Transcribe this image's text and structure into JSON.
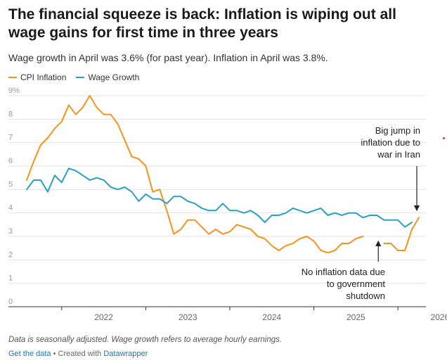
{
  "header": {
    "title": "The financial squeeze is back: Inflation is wiping out all wage gains for first time in three years",
    "subtitle": "Wage growth in April was 3.6% (for past year). Inflation in April was 3.8%."
  },
  "footer": {
    "note": "Data is seasonally adjusted. Wage growth refers to average hourly earnings.",
    "get_data": "Get the data",
    "separator": " • Created with ",
    "created_with": "Datawrapper"
  },
  "colors": {
    "cpi": "#f5931e",
    "wage": "#2aa1c3",
    "grid": "#e2e2e2",
    "text": "#555555"
  },
  "chart_data": {
    "type": "line",
    "ylim": [
      0,
      9
    ],
    "xlim": [
      "2021-08",
      "2026-05"
    ],
    "y_ticks": [
      "0",
      "1",
      "2",
      "3",
      "4",
      "5",
      "6",
      "7",
      "8",
      "9%"
    ],
    "x_ticks": [
      "2022",
      "2023",
      "2024",
      "2025",
      "2026"
    ],
    "legend_position": "top-left",
    "grid": "horizontal",
    "annotations": [
      {
        "text": [
          "Big jump in",
          "inflation due to",
          "war in Iran"
        ],
        "x": "2026-04",
        "y": 3.8
      },
      {
        "text": [
          "No inflation data due",
          "to government",
          "shutdown"
        ],
        "x": "2025-10",
        "y": 2.9
      }
    ],
    "series": [
      {
        "name": "CPI Inflation",
        "color": "#f5931e",
        "start": "2021-08",
        "values": [
          5.4,
          6.2,
          6.9,
          7.2,
          7.6,
          7.9,
          8.6,
          8.2,
          8.5,
          9.0,
          8.5,
          8.2,
          8.2,
          7.8,
          7.1,
          6.4,
          6.3,
          6.0,
          4.9,
          5.0,
          4.1,
          3.1,
          3.3,
          3.7,
          3.7,
          3.4,
          3.1,
          3.3,
          3.1,
          3.2,
          3.5,
          3.4,
          3.3,
          3.0,
          2.9,
          2.6,
          2.4,
          2.6,
          2.7,
          2.9,
          3.0,
          2.8,
          2.4,
          2.3,
          2.4,
          2.7,
          2.7,
          2.9,
          3.0,
          null,
          null,
          2.7,
          2.7,
          2.4,
          2.4,
          3.3,
          3.8
        ]
      },
      {
        "name": "Wage Growth",
        "color": "#2aa1c3",
        "start": "2021-08",
        "values": [
          5.0,
          5.4,
          5.4,
          4.9,
          5.6,
          5.3,
          5.9,
          5.8,
          5.6,
          5.4,
          5.5,
          5.4,
          5.1,
          5.0,
          5.1,
          4.9,
          4.5,
          4.8,
          4.6,
          4.6,
          4.4,
          4.7,
          4.7,
          4.5,
          4.4,
          4.2,
          4.1,
          4.1,
          4.4,
          4.1,
          4.1,
          4.0,
          4.1,
          3.9,
          3.6,
          3.9,
          3.9,
          4.0,
          4.2,
          4.1,
          4.0,
          4.1,
          4.2,
          3.9,
          4.0,
          3.9,
          4.0,
          4.0,
          3.8,
          3.9,
          3.9,
          3.7,
          3.7,
          3.7,
          3.4,
          3.6
        ]
      }
    ]
  }
}
